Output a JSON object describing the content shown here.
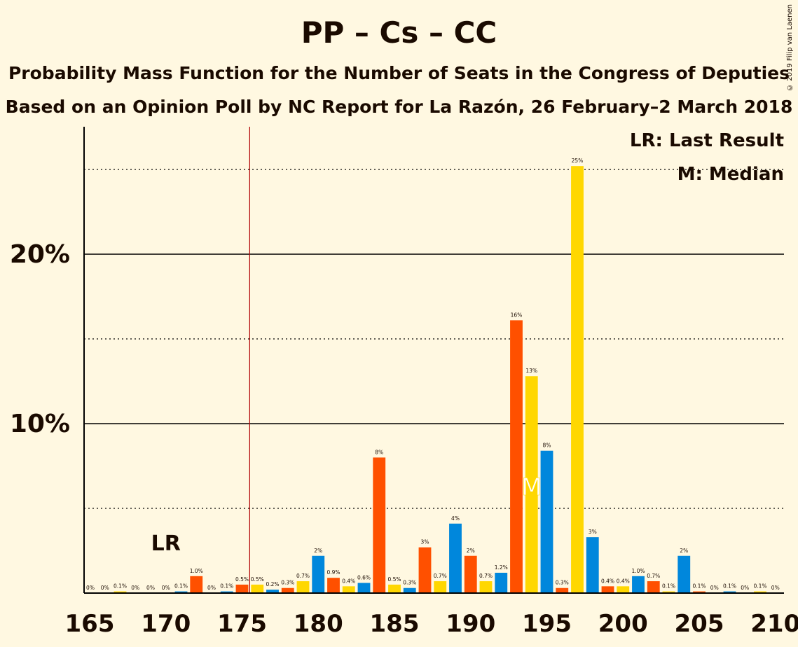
{
  "header": {
    "title": "PP – Cs – CC",
    "subtitle1": "Probability Mass Function for the Number of Seats in the Congress of Deputies",
    "subtitle2": "Based on an Opinion Poll by NC Report for La Razón, 26 February–2 March 2018",
    "copyright": "© 2019 Filip van Laenen"
  },
  "legend": {
    "lr": "LR: Last Result",
    "median": "M: Median"
  },
  "colors": {
    "pp": "#0087DC",
    "cs": "#FF5000",
    "cc": "#FFD700",
    "last_result_line": "#B00000",
    "background": "#FFF8E1"
  },
  "chart_data": {
    "type": "bar",
    "xlabel": "",
    "ylabel": "",
    "xlim": [
      165,
      210
    ],
    "ylim": [
      0,
      0.275
    ],
    "x_ticks": [
      165,
      170,
      175,
      180,
      185,
      190,
      195,
      200,
      205,
      210
    ],
    "y_ticks": [
      {
        "value": 0.1,
        "label": "10%"
      },
      {
        "value": 0.2,
        "label": "20%"
      }
    ],
    "minor_gridlines": [
      0.05,
      0.15,
      0.25
    ],
    "last_result": {
      "seats": 176,
      "label": "LR"
    },
    "median": {
      "seats": 194,
      "label": "M"
    },
    "seats": [
      166,
      167,
      168,
      169,
      170,
      171,
      172,
      173,
      174,
      175,
      176,
      177,
      178,
      179,
      180,
      181,
      182,
      183,
      184,
      185,
      186,
      187,
      188,
      189,
      190,
      191,
      192,
      193,
      194,
      195,
      196,
      197,
      198,
      199,
      200,
      201,
      202,
      203,
      204,
      205,
      206,
      207,
      208,
      209,
      210
    ],
    "values": [
      0.0,
      0.001,
      0.0,
      0.0,
      0.0,
      0.001,
      0.01,
      0.0,
      0.001,
      0.005,
      0.005,
      0.002,
      0.003,
      0.007,
      0.022,
      0.009,
      0.004,
      0.006,
      0.08,
      0.005,
      0.003,
      0.027,
      0.007,
      0.041,
      0.022,
      0.007,
      0.012,
      0.161,
      0.128,
      0.084,
      0.003,
      0.252,
      0.033,
      0.004,
      0.004,
      0.01,
      0.007,
      0.001,
      0.022,
      0.001,
      0.0,
      0.001,
      0.0,
      0.001,
      0.0
    ],
    "labels": [
      "0%",
      "0.1%",
      "0%",
      "0%",
      "0%",
      "0.1%",
      "1.0%",
      "0%",
      "0.1%",
      "0.5%",
      "0.5%",
      "0.2%",
      "0.3%",
      "0.7%",
      "2%",
      "0.9%",
      "0.4%",
      "0.6%",
      "8%",
      "0.5%",
      "0.3%",
      "3%",
      "0.7%",
      "4%",
      "2%",
      "0.7%",
      "1.2%",
      "16%",
      "13%",
      "8%",
      "0.3%",
      "25%",
      "3%",
      "0.4%",
      "0.4%",
      "1.0%",
      "0.7%",
      "0.1%",
      "2%",
      "0.1%",
      "0%",
      "0.1%",
      "0%",
      "0.1%",
      "0%"
    ],
    "first_label": "0%"
  }
}
